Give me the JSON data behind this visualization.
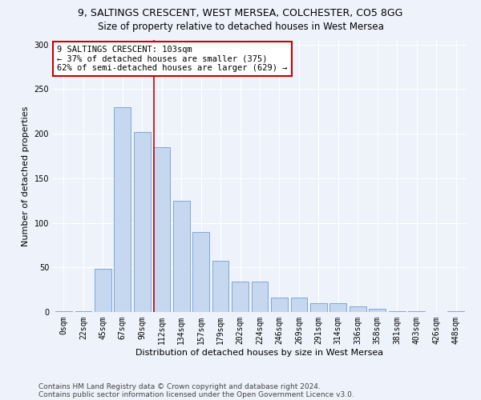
{
  "title_line1": "9, SALTINGS CRESCENT, WEST MERSEA, COLCHESTER, CO5 8GG",
  "title_line2": "Size of property relative to detached houses in West Mersea",
  "xlabel": "Distribution of detached houses by size in West Mersea",
  "ylabel": "Number of detached properties",
  "categories": [
    "0sqm",
    "22sqm",
    "45sqm",
    "67sqm",
    "90sqm",
    "112sqm",
    "134sqm",
    "157sqm",
    "179sqm",
    "202sqm",
    "224sqm",
    "246sqm",
    "269sqm",
    "291sqm",
    "314sqm",
    "336sqm",
    "358sqm",
    "381sqm",
    "403sqm",
    "426sqm",
    "448sqm"
  ],
  "values": [
    1,
    1,
    48,
    230,
    202,
    185,
    125,
    90,
    57,
    34,
    34,
    16,
    16,
    10,
    10,
    6,
    4,
    1,
    1,
    0,
    1
  ],
  "bar_color": "#c5d8f0",
  "bar_edge_color": "#5b8fc9",
  "annotation_text": "9 SALTINGS CRESCENT: 103sqm\n← 37% of detached houses are smaller (375)\n62% of semi-detached houses are larger (629) →",
  "annotation_box_color": "#ffffff",
  "annotation_box_edge_color": "#cc0000",
  "vline_color": "#cc0000",
  "ylim": [
    0,
    305
  ],
  "yticks": [
    0,
    50,
    100,
    150,
    200,
    250,
    300
  ],
  "footer_line1": "Contains HM Land Registry data © Crown copyright and database right 2024.",
  "footer_line2": "Contains public sector information licensed under the Open Government Licence v3.0.",
  "background_color": "#eef2fb",
  "grid_color": "#ffffff",
  "title_fontsize": 9,
  "subtitle_fontsize": 8.5,
  "axis_label_fontsize": 8,
  "tick_fontsize": 7,
  "annotation_fontsize": 7.5,
  "footer_fontsize": 6.5
}
